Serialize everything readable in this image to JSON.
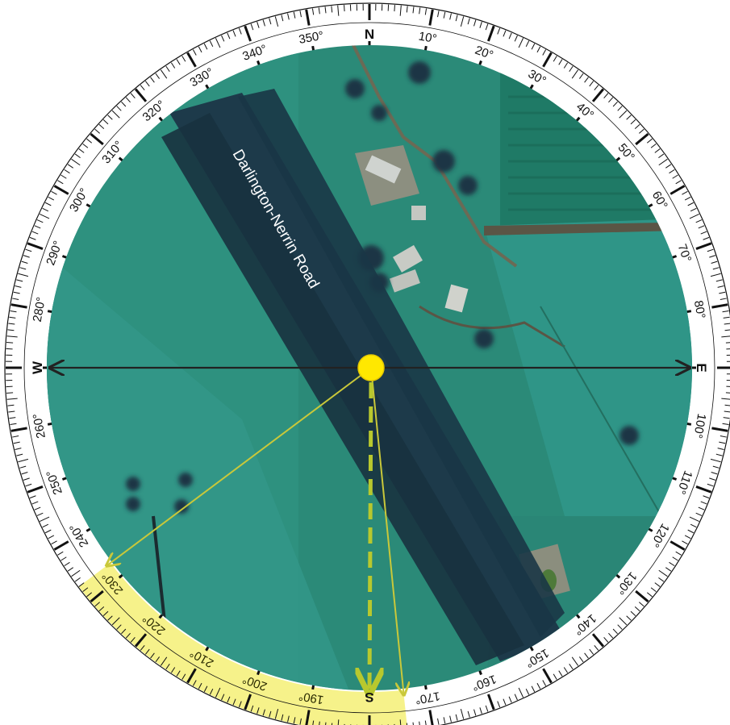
{
  "compass": {
    "cardinals": {
      "north": "N",
      "east": "E",
      "south": "S",
      "west": "W"
    },
    "degree_labels": [
      {
        "deg": 10,
        "label": "10°"
      },
      {
        "deg": 20,
        "label": "20°"
      },
      {
        "deg": 30,
        "label": "30°"
      },
      {
        "deg": 40,
        "label": "40°"
      },
      {
        "deg": 50,
        "label": "50°"
      },
      {
        "deg": 60,
        "label": "60°"
      },
      {
        "deg": 70,
        "label": "70°"
      },
      {
        "deg": 80,
        "label": "80°"
      },
      {
        "deg": 100,
        "label": "100°"
      },
      {
        "deg": 110,
        "label": "110°"
      },
      {
        "deg": 120,
        "label": "120°"
      },
      {
        "deg": 130,
        "label": "130°"
      },
      {
        "deg": 140,
        "label": "140°"
      },
      {
        "deg": 150,
        "label": "150°"
      },
      {
        "deg": 160,
        "label": "160°"
      },
      {
        "deg": 170,
        "label": "170°"
      },
      {
        "deg": 190,
        "label": "190°"
      },
      {
        "deg": 200,
        "label": "200°"
      },
      {
        "deg": 210,
        "label": "210°"
      },
      {
        "deg": 220,
        "label": "220°"
      },
      {
        "deg": 230,
        "label": "230°"
      },
      {
        "deg": 240,
        "label": "240°"
      },
      {
        "deg": 250,
        "label": "250°"
      },
      {
        "deg": 260,
        "label": "260°"
      },
      {
        "deg": 280,
        "label": "280°"
      },
      {
        "deg": 290,
        "label": "290°"
      },
      {
        "deg": 300,
        "label": "300°"
      },
      {
        "deg": 310,
        "label": "310°"
      },
      {
        "deg": 320,
        "label": "320°"
      },
      {
        "deg": 330,
        "label": "330°"
      },
      {
        "deg": 340,
        "label": "340°"
      },
      {
        "deg": 350,
        "label": "350°"
      }
    ],
    "highlight_arc_degrees": [
      174,
      233
    ],
    "rays_degrees": [
      174,
      233
    ],
    "dashed_arrow_degree": 180
  },
  "map": {
    "road_label": "Darlington-Nerrin Road"
  },
  "colors": {
    "highlight": "#f6f28a",
    "ray": "#c9c83a",
    "dashed_arrow": "#b8c82e",
    "sun": "#ffe800",
    "axis": "#222222",
    "field": "#2a8a78",
    "trees": "#1d3a4a"
  }
}
